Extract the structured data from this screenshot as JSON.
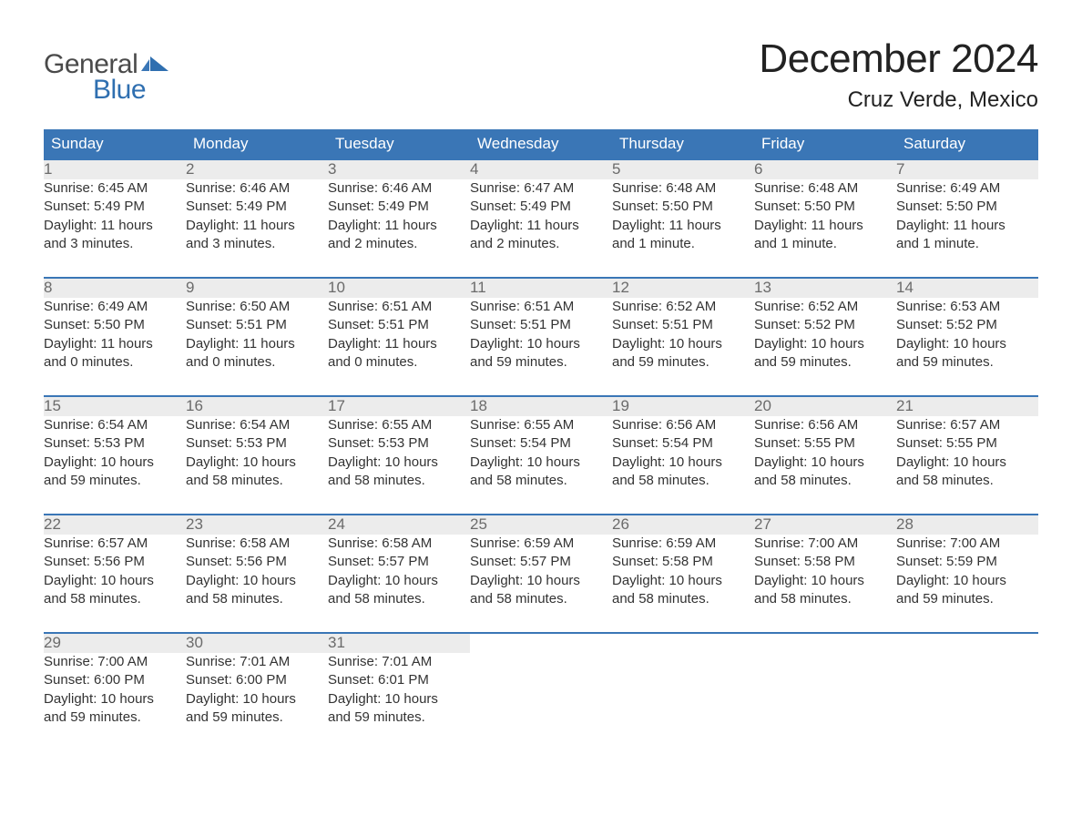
{
  "brand": {
    "word1": "General",
    "word2": "Blue",
    "text_color": "#4a4a4a",
    "accent_color": "#2f6fb0"
  },
  "title": {
    "month": "December 2024",
    "location": "Cruz Verde, Mexico"
  },
  "colors": {
    "header_bg": "#3a76b6",
    "header_text": "#ffffff",
    "daynum_bg": "#ececec",
    "daynum_text": "#6b6b6b",
    "body_text": "#333333",
    "rule": "#3a76b6",
    "page_bg": "#ffffff"
  },
  "typography": {
    "title_fontsize": 44,
    "location_fontsize": 24,
    "header_fontsize": 17,
    "daynum_fontsize": 17,
    "cell_fontsize": 15,
    "font_family": "Arial"
  },
  "calendar": {
    "type": "table",
    "columns": [
      "Sunday",
      "Monday",
      "Tuesday",
      "Wednesday",
      "Thursday",
      "Friday",
      "Saturday"
    ],
    "weeks": [
      {
        "days": [
          {
            "n": "1",
            "sunrise": "Sunrise: 6:45 AM",
            "sunset": "Sunset: 5:49 PM",
            "day1": "Daylight: 11 hours",
            "day2": "and 3 minutes."
          },
          {
            "n": "2",
            "sunrise": "Sunrise: 6:46 AM",
            "sunset": "Sunset: 5:49 PM",
            "day1": "Daylight: 11 hours",
            "day2": "and 3 minutes."
          },
          {
            "n": "3",
            "sunrise": "Sunrise: 6:46 AM",
            "sunset": "Sunset: 5:49 PM",
            "day1": "Daylight: 11 hours",
            "day2": "and 2 minutes."
          },
          {
            "n": "4",
            "sunrise": "Sunrise: 6:47 AM",
            "sunset": "Sunset: 5:49 PM",
            "day1": "Daylight: 11 hours",
            "day2": "and 2 minutes."
          },
          {
            "n": "5",
            "sunrise": "Sunrise: 6:48 AM",
            "sunset": "Sunset: 5:50 PM",
            "day1": "Daylight: 11 hours",
            "day2": "and 1 minute."
          },
          {
            "n": "6",
            "sunrise": "Sunrise: 6:48 AM",
            "sunset": "Sunset: 5:50 PM",
            "day1": "Daylight: 11 hours",
            "day2": "and 1 minute."
          },
          {
            "n": "7",
            "sunrise": "Sunrise: 6:49 AM",
            "sunset": "Sunset: 5:50 PM",
            "day1": "Daylight: 11 hours",
            "day2": "and 1 minute."
          }
        ]
      },
      {
        "days": [
          {
            "n": "8",
            "sunrise": "Sunrise: 6:49 AM",
            "sunset": "Sunset: 5:50 PM",
            "day1": "Daylight: 11 hours",
            "day2": "and 0 minutes."
          },
          {
            "n": "9",
            "sunrise": "Sunrise: 6:50 AM",
            "sunset": "Sunset: 5:51 PM",
            "day1": "Daylight: 11 hours",
            "day2": "and 0 minutes."
          },
          {
            "n": "10",
            "sunrise": "Sunrise: 6:51 AM",
            "sunset": "Sunset: 5:51 PM",
            "day1": "Daylight: 11 hours",
            "day2": "and 0 minutes."
          },
          {
            "n": "11",
            "sunrise": "Sunrise: 6:51 AM",
            "sunset": "Sunset: 5:51 PM",
            "day1": "Daylight: 10 hours",
            "day2": "and 59 minutes."
          },
          {
            "n": "12",
            "sunrise": "Sunrise: 6:52 AM",
            "sunset": "Sunset: 5:51 PM",
            "day1": "Daylight: 10 hours",
            "day2": "and 59 minutes."
          },
          {
            "n": "13",
            "sunrise": "Sunrise: 6:52 AM",
            "sunset": "Sunset: 5:52 PM",
            "day1": "Daylight: 10 hours",
            "day2": "and 59 minutes."
          },
          {
            "n": "14",
            "sunrise": "Sunrise: 6:53 AM",
            "sunset": "Sunset: 5:52 PM",
            "day1": "Daylight: 10 hours",
            "day2": "and 59 minutes."
          }
        ]
      },
      {
        "days": [
          {
            "n": "15",
            "sunrise": "Sunrise: 6:54 AM",
            "sunset": "Sunset: 5:53 PM",
            "day1": "Daylight: 10 hours",
            "day2": "and 59 minutes."
          },
          {
            "n": "16",
            "sunrise": "Sunrise: 6:54 AM",
            "sunset": "Sunset: 5:53 PM",
            "day1": "Daylight: 10 hours",
            "day2": "and 58 minutes."
          },
          {
            "n": "17",
            "sunrise": "Sunrise: 6:55 AM",
            "sunset": "Sunset: 5:53 PM",
            "day1": "Daylight: 10 hours",
            "day2": "and 58 minutes."
          },
          {
            "n": "18",
            "sunrise": "Sunrise: 6:55 AM",
            "sunset": "Sunset: 5:54 PM",
            "day1": "Daylight: 10 hours",
            "day2": "and 58 minutes."
          },
          {
            "n": "19",
            "sunrise": "Sunrise: 6:56 AM",
            "sunset": "Sunset: 5:54 PM",
            "day1": "Daylight: 10 hours",
            "day2": "and 58 minutes."
          },
          {
            "n": "20",
            "sunrise": "Sunrise: 6:56 AM",
            "sunset": "Sunset: 5:55 PM",
            "day1": "Daylight: 10 hours",
            "day2": "and 58 minutes."
          },
          {
            "n": "21",
            "sunrise": "Sunrise: 6:57 AM",
            "sunset": "Sunset: 5:55 PM",
            "day1": "Daylight: 10 hours",
            "day2": "and 58 minutes."
          }
        ]
      },
      {
        "days": [
          {
            "n": "22",
            "sunrise": "Sunrise: 6:57 AM",
            "sunset": "Sunset: 5:56 PM",
            "day1": "Daylight: 10 hours",
            "day2": "and 58 minutes."
          },
          {
            "n": "23",
            "sunrise": "Sunrise: 6:58 AM",
            "sunset": "Sunset: 5:56 PM",
            "day1": "Daylight: 10 hours",
            "day2": "and 58 minutes."
          },
          {
            "n": "24",
            "sunrise": "Sunrise: 6:58 AM",
            "sunset": "Sunset: 5:57 PM",
            "day1": "Daylight: 10 hours",
            "day2": "and 58 minutes."
          },
          {
            "n": "25",
            "sunrise": "Sunrise: 6:59 AM",
            "sunset": "Sunset: 5:57 PM",
            "day1": "Daylight: 10 hours",
            "day2": "and 58 minutes."
          },
          {
            "n": "26",
            "sunrise": "Sunrise: 6:59 AM",
            "sunset": "Sunset: 5:58 PM",
            "day1": "Daylight: 10 hours",
            "day2": "and 58 minutes."
          },
          {
            "n": "27",
            "sunrise": "Sunrise: 7:00 AM",
            "sunset": "Sunset: 5:58 PM",
            "day1": "Daylight: 10 hours",
            "day2": "and 58 minutes."
          },
          {
            "n": "28",
            "sunrise": "Sunrise: 7:00 AM",
            "sunset": "Sunset: 5:59 PM",
            "day1": "Daylight: 10 hours",
            "day2": "and 59 minutes."
          }
        ]
      },
      {
        "days": [
          {
            "n": "29",
            "sunrise": "Sunrise: 7:00 AM",
            "sunset": "Sunset: 6:00 PM",
            "day1": "Daylight: 10 hours",
            "day2": "and 59 minutes."
          },
          {
            "n": "30",
            "sunrise": "Sunrise: 7:01 AM",
            "sunset": "Sunset: 6:00 PM",
            "day1": "Daylight: 10 hours",
            "day2": "and 59 minutes."
          },
          {
            "n": "31",
            "sunrise": "Sunrise: 7:01 AM",
            "sunset": "Sunset: 6:01 PM",
            "day1": "Daylight: 10 hours",
            "day2": "and 59 minutes."
          },
          null,
          null,
          null,
          null
        ]
      }
    ]
  }
}
